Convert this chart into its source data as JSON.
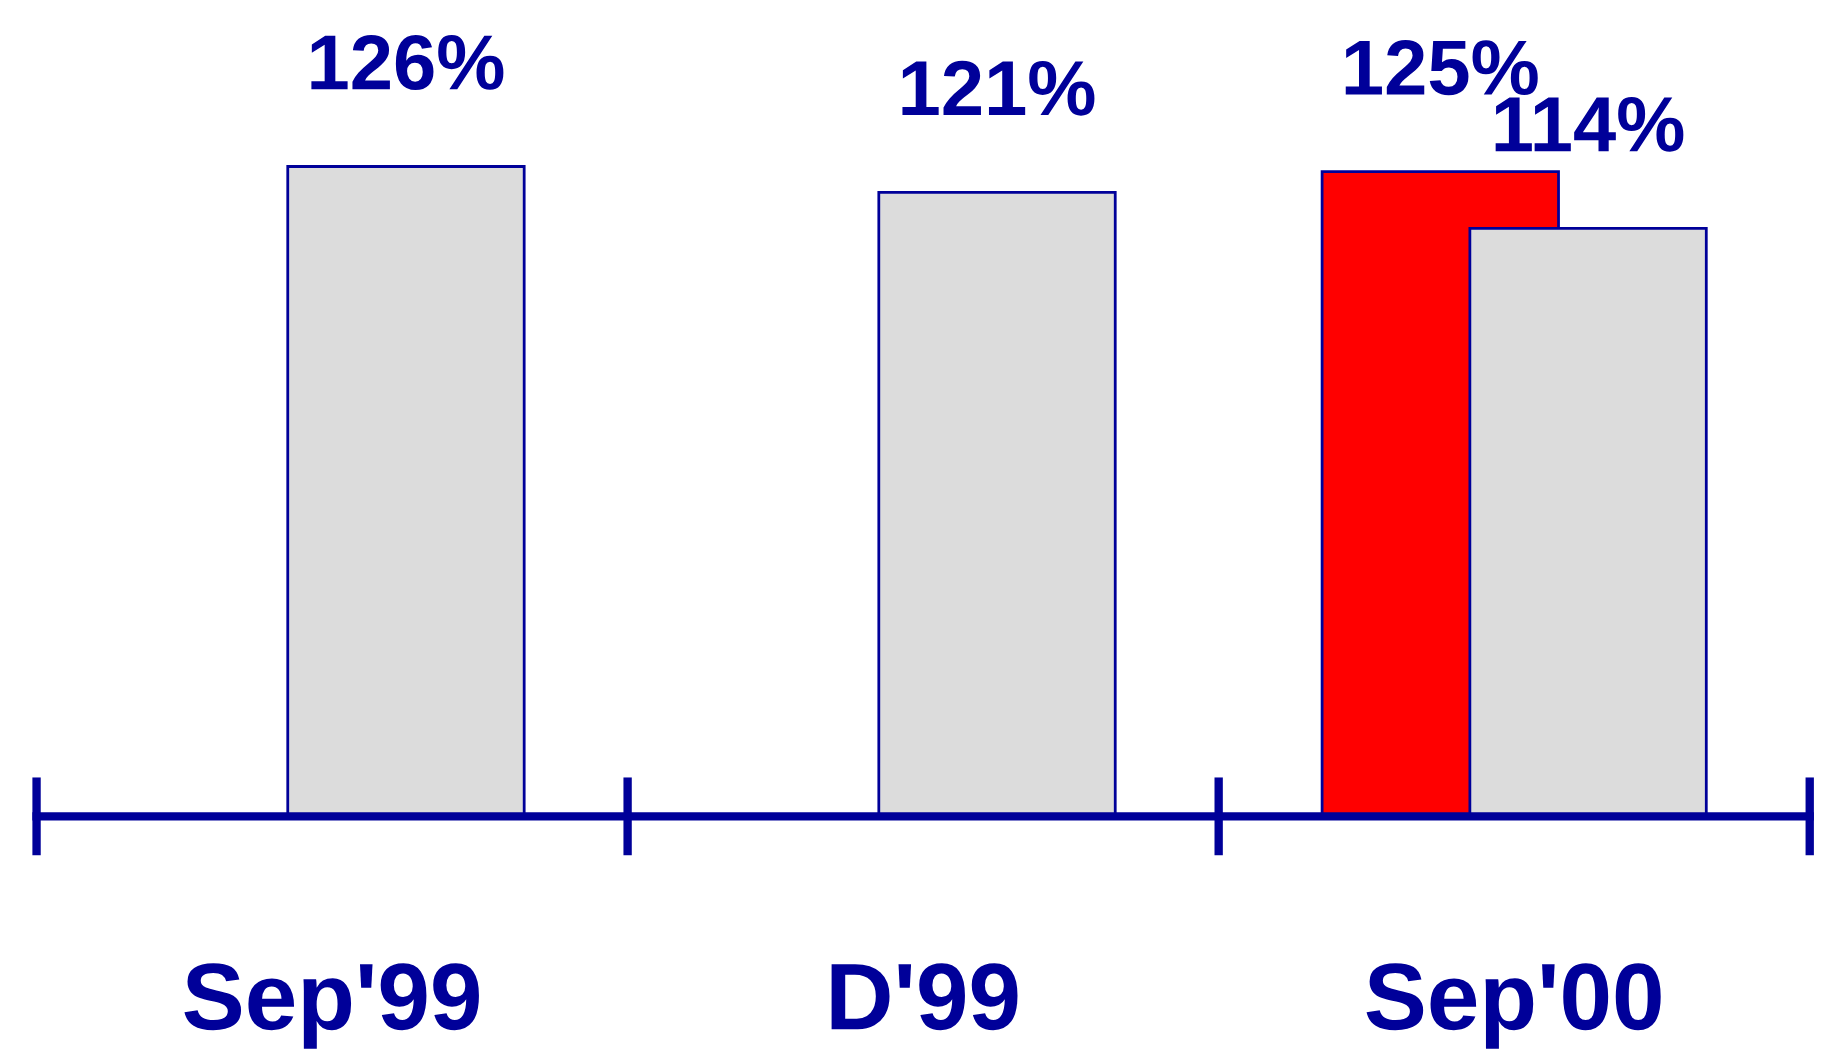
{
  "chart_data": {
    "type": "bar",
    "categories": [
      "Sep'99",
      "D'99",
      "Sep'00"
    ],
    "series": [
      {
        "color": "#ff0000",
        "values": [
          null,
          null,
          125
        ],
        "value_labels": [
          null,
          null,
          "125%"
        ]
      },
      {
        "color": "#dcdcdc",
        "values": [
          126,
          121,
          114
        ],
        "value_labels": [
          "126%",
          "121%",
          "114%"
        ]
      }
    ],
    "grid": false,
    "legend": false
  }
}
